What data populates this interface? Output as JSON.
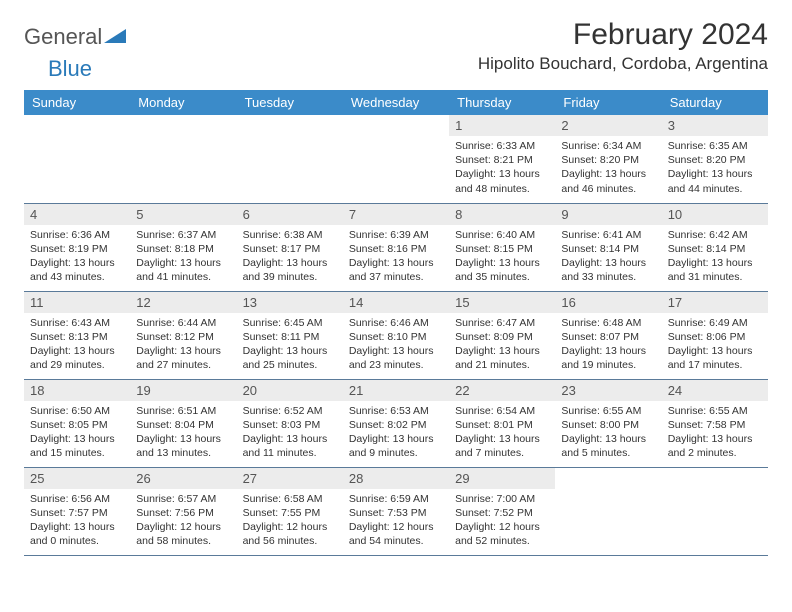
{
  "brand": {
    "part1": "General",
    "part2": "Blue"
  },
  "title": "February 2024",
  "location": "Hipolito Bouchard, Cordoba, Argentina",
  "colors": {
    "header_bg": "#3b8bc9",
    "header_text": "#ffffff",
    "daynum_bg": "#ececec",
    "rule": "#5a7a99",
    "brand_blue": "#2a7ab9"
  },
  "weekdays": [
    "Sunday",
    "Monday",
    "Tuesday",
    "Wednesday",
    "Thursday",
    "Friday",
    "Saturday"
  ],
  "weeks": [
    [
      {
        "n": "",
        "sr": "",
        "ss": "",
        "dl": ""
      },
      {
        "n": "",
        "sr": "",
        "ss": "",
        "dl": ""
      },
      {
        "n": "",
        "sr": "",
        "ss": "",
        "dl": ""
      },
      {
        "n": "",
        "sr": "",
        "ss": "",
        "dl": ""
      },
      {
        "n": "1",
        "sr": "Sunrise: 6:33 AM",
        "ss": "Sunset: 8:21 PM",
        "dl": "Daylight: 13 hours and 48 minutes."
      },
      {
        "n": "2",
        "sr": "Sunrise: 6:34 AM",
        "ss": "Sunset: 8:20 PM",
        "dl": "Daylight: 13 hours and 46 minutes."
      },
      {
        "n": "3",
        "sr": "Sunrise: 6:35 AM",
        "ss": "Sunset: 8:20 PM",
        "dl": "Daylight: 13 hours and 44 minutes."
      }
    ],
    [
      {
        "n": "4",
        "sr": "Sunrise: 6:36 AM",
        "ss": "Sunset: 8:19 PM",
        "dl": "Daylight: 13 hours and 43 minutes."
      },
      {
        "n": "5",
        "sr": "Sunrise: 6:37 AM",
        "ss": "Sunset: 8:18 PM",
        "dl": "Daylight: 13 hours and 41 minutes."
      },
      {
        "n": "6",
        "sr": "Sunrise: 6:38 AM",
        "ss": "Sunset: 8:17 PM",
        "dl": "Daylight: 13 hours and 39 minutes."
      },
      {
        "n": "7",
        "sr": "Sunrise: 6:39 AM",
        "ss": "Sunset: 8:16 PM",
        "dl": "Daylight: 13 hours and 37 minutes."
      },
      {
        "n": "8",
        "sr": "Sunrise: 6:40 AM",
        "ss": "Sunset: 8:15 PM",
        "dl": "Daylight: 13 hours and 35 minutes."
      },
      {
        "n": "9",
        "sr": "Sunrise: 6:41 AM",
        "ss": "Sunset: 8:14 PM",
        "dl": "Daylight: 13 hours and 33 minutes."
      },
      {
        "n": "10",
        "sr": "Sunrise: 6:42 AM",
        "ss": "Sunset: 8:14 PM",
        "dl": "Daylight: 13 hours and 31 minutes."
      }
    ],
    [
      {
        "n": "11",
        "sr": "Sunrise: 6:43 AM",
        "ss": "Sunset: 8:13 PM",
        "dl": "Daylight: 13 hours and 29 minutes."
      },
      {
        "n": "12",
        "sr": "Sunrise: 6:44 AM",
        "ss": "Sunset: 8:12 PM",
        "dl": "Daylight: 13 hours and 27 minutes."
      },
      {
        "n": "13",
        "sr": "Sunrise: 6:45 AM",
        "ss": "Sunset: 8:11 PM",
        "dl": "Daylight: 13 hours and 25 minutes."
      },
      {
        "n": "14",
        "sr": "Sunrise: 6:46 AM",
        "ss": "Sunset: 8:10 PM",
        "dl": "Daylight: 13 hours and 23 minutes."
      },
      {
        "n": "15",
        "sr": "Sunrise: 6:47 AM",
        "ss": "Sunset: 8:09 PM",
        "dl": "Daylight: 13 hours and 21 minutes."
      },
      {
        "n": "16",
        "sr": "Sunrise: 6:48 AM",
        "ss": "Sunset: 8:07 PM",
        "dl": "Daylight: 13 hours and 19 minutes."
      },
      {
        "n": "17",
        "sr": "Sunrise: 6:49 AM",
        "ss": "Sunset: 8:06 PM",
        "dl": "Daylight: 13 hours and 17 minutes."
      }
    ],
    [
      {
        "n": "18",
        "sr": "Sunrise: 6:50 AM",
        "ss": "Sunset: 8:05 PM",
        "dl": "Daylight: 13 hours and 15 minutes."
      },
      {
        "n": "19",
        "sr": "Sunrise: 6:51 AM",
        "ss": "Sunset: 8:04 PM",
        "dl": "Daylight: 13 hours and 13 minutes."
      },
      {
        "n": "20",
        "sr": "Sunrise: 6:52 AM",
        "ss": "Sunset: 8:03 PM",
        "dl": "Daylight: 13 hours and 11 minutes."
      },
      {
        "n": "21",
        "sr": "Sunrise: 6:53 AM",
        "ss": "Sunset: 8:02 PM",
        "dl": "Daylight: 13 hours and 9 minutes."
      },
      {
        "n": "22",
        "sr": "Sunrise: 6:54 AM",
        "ss": "Sunset: 8:01 PM",
        "dl": "Daylight: 13 hours and 7 minutes."
      },
      {
        "n": "23",
        "sr": "Sunrise: 6:55 AM",
        "ss": "Sunset: 8:00 PM",
        "dl": "Daylight: 13 hours and 5 minutes."
      },
      {
        "n": "24",
        "sr": "Sunrise: 6:55 AM",
        "ss": "Sunset: 7:58 PM",
        "dl": "Daylight: 13 hours and 2 minutes."
      }
    ],
    [
      {
        "n": "25",
        "sr": "Sunrise: 6:56 AM",
        "ss": "Sunset: 7:57 PM",
        "dl": "Daylight: 13 hours and 0 minutes."
      },
      {
        "n": "26",
        "sr": "Sunrise: 6:57 AM",
        "ss": "Sunset: 7:56 PM",
        "dl": "Daylight: 12 hours and 58 minutes."
      },
      {
        "n": "27",
        "sr": "Sunrise: 6:58 AM",
        "ss": "Sunset: 7:55 PM",
        "dl": "Daylight: 12 hours and 56 minutes."
      },
      {
        "n": "28",
        "sr": "Sunrise: 6:59 AM",
        "ss": "Sunset: 7:53 PM",
        "dl": "Daylight: 12 hours and 54 minutes."
      },
      {
        "n": "29",
        "sr": "Sunrise: 7:00 AM",
        "ss": "Sunset: 7:52 PM",
        "dl": "Daylight: 12 hours and 52 minutes."
      },
      {
        "n": "",
        "sr": "",
        "ss": "",
        "dl": ""
      },
      {
        "n": "",
        "sr": "",
        "ss": "",
        "dl": ""
      }
    ]
  ]
}
